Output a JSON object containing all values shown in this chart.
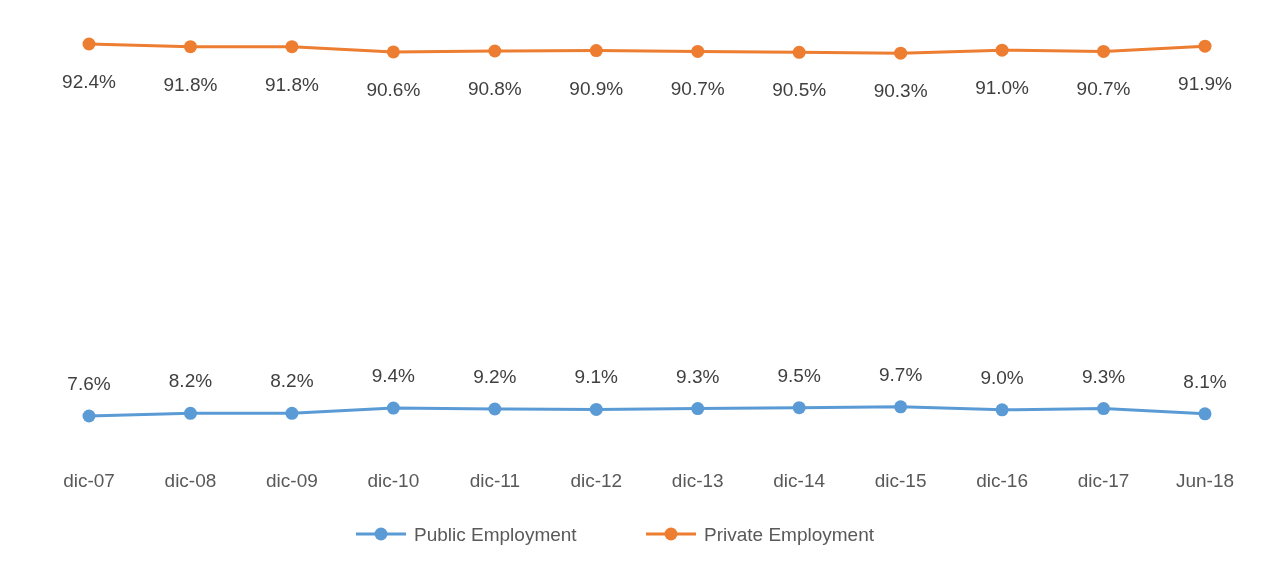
{
  "chart_data": {
    "type": "line",
    "categories": [
      "dic-07",
      "dic-08",
      "dic-09",
      "dic-10",
      "dic-11",
      "dic-12",
      "dic-13",
      "dic-14",
      "dic-15",
      "dic-16",
      "dic-17",
      "Jun-18"
    ],
    "tick_labels": "x",
    "marker": "circle",
    "line_style": "solid",
    "legend": "bottom",
    "grid": false,
    "series": [
      {
        "name": "Public Employment",
        "color": "#5b9bd5",
        "values": [
          7.6,
          8.2,
          8.2,
          9.4,
          9.2,
          9.1,
          9.3,
          9.5,
          9.7,
          9.0,
          9.3,
          8.1
        ],
        "value_labels": [
          "7.6%",
          "8.2%",
          "8.2%",
          "9.4%",
          "9.2%",
          "9.1%",
          "9.3%",
          "9.5%",
          "9.7%",
          "9.0%",
          "9.3%",
          "8.1%"
        ]
      },
      {
        "name": "Private Employment",
        "color": "#ed7d31",
        "values": [
          92.4,
          91.8,
          91.8,
          90.6,
          90.8,
          90.9,
          90.7,
          90.5,
          90.3,
          91.0,
          90.7,
          91.9
        ],
        "value_labels": [
          "92.4%",
          "91.8%",
          "91.8%",
          "90.6%",
          "90.8%",
          "90.9%",
          "90.7%",
          "90.5%",
          "90.3%",
          "91.0%",
          "90.7%",
          "91.9%"
        ]
      }
    ]
  }
}
